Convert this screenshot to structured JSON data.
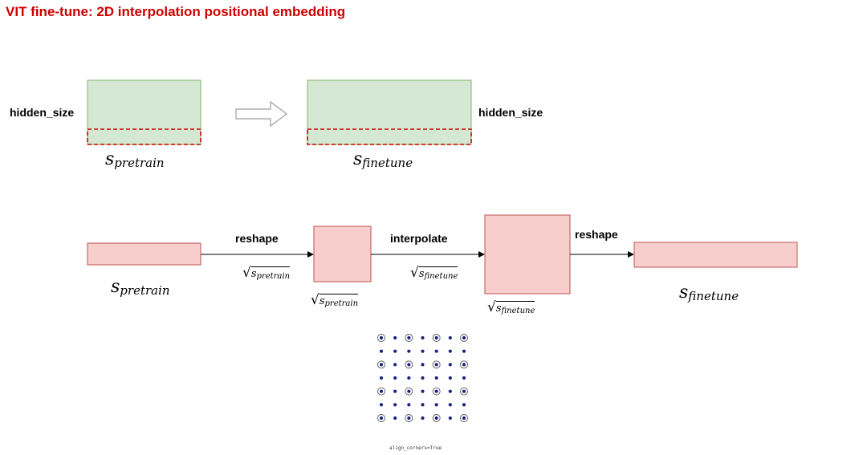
{
  "title": "VIT fine-tune: 2D interpolation positional embedding",
  "top_row": {
    "left_label": "hidden_size",
    "right_label": "hidden_size",
    "pretrain_base": "s",
    "pretrain_sub": "pretrain",
    "finetune_base": "s",
    "finetune_sub": "finetune"
  },
  "bottom_row": {
    "reshape1_label": "reshape",
    "interpolate_label": "interpolate",
    "reshape2_label": "reshape",
    "seq_pretrain_base": "s",
    "seq_pretrain_sub": "pretrain",
    "seq_finetune_base": "s",
    "seq_finetune_sub": "finetune",
    "sqrt_pretrain_base": "s",
    "sqrt_pretrain_sub": "pretrain",
    "sqrt_finetune_base": "s",
    "sqrt_finetune_sub": "finetune"
  },
  "grid_caption": "align_corners=True",
  "colors": {
    "title": "#cc0000",
    "green_fill": "#d5e8d4",
    "green_stroke": "#82b366",
    "pink_fill": "#f8cecc",
    "pink_stroke": "#b85450",
    "dash": "#cc0000",
    "dot": "#1a237e"
  }
}
